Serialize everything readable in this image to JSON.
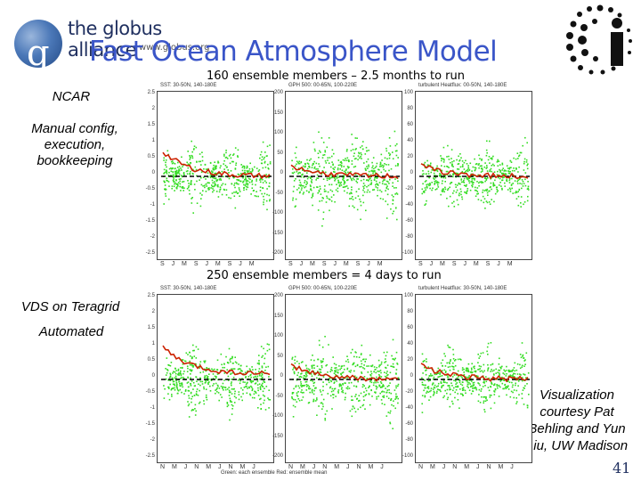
{
  "header": {
    "logo_text": "the globus alliance",
    "logo_url": "www.globus.org",
    "title": "Fast Ocean Atmosphere Model"
  },
  "sidebar": {
    "top_label": "NCAR",
    "top_desc": "Manual config, execution, bookkeeping",
    "bottom_label": "VDS on Teragrid",
    "bottom_desc": "Automated"
  },
  "captions": {
    "top": "160 ensemble members – 2.5 months to run",
    "bottom": "250 ensemble members = 4 days to run"
  },
  "credit": "Visualization courtesy Pat Behling and Yun Liu, UW Madison",
  "page_number": "41",
  "footnote": "Green: each ensemble  Red: ensemble mean",
  "colors": {
    "title": "#3a55c8",
    "ensemble": "#33dd22",
    "mean": "#cc2200"
  },
  "panels": [
    {
      "title": "SST: 30-50N, 140-180E",
      "yticks": [
        "2.5",
        "2",
        "1.5",
        "1",
        "0.5",
        "0",
        "-0.5",
        "-1",
        "-1.5",
        "-2",
        "-2.5"
      ],
      "xticks": "S J M S J M S J M"
    },
    {
      "title": "GPH 500: 00-65N, 100-220E",
      "yticks": [
        "200",
        "150",
        "100",
        "50",
        "0",
        "-50",
        "-100",
        "-150",
        "-200"
      ],
      "xticks": "S J M S J M S J M"
    },
    {
      "title": "turbulent Heatflux: 00-50N, 140-180E",
      "yticks": [
        "100",
        "80",
        "60",
        "40",
        "20",
        "0",
        "-20",
        "-40",
        "-60",
        "-80",
        "-100"
      ],
      "xticks": "S J M S J M S J M"
    },
    {
      "title": "SST: 30-50N, 140-180E",
      "yticks": [
        "2.5",
        "2",
        "1.5",
        "1",
        "0.5",
        "0",
        "-0.5",
        "-1",
        "-1.5",
        "-2",
        "-2.5"
      ],
      "xticks": "N M J N M J N M J"
    },
    {
      "title": "GPH 500: 00-65N, 100-220E",
      "yticks": [
        "200",
        "150",
        "100",
        "50",
        "0",
        "-50",
        "-100",
        "-150",
        "-200"
      ],
      "xticks": "N M J N M J N M J"
    },
    {
      "title": "turbulent Heatflux: 30-50N, 140-180E",
      "yticks": [
        "100",
        "80",
        "60",
        "40",
        "20",
        "0",
        "-20",
        "-40",
        "-60",
        "-80",
        "-100"
      ],
      "xticks": "N M J N M J N M J"
    }
  ]
}
